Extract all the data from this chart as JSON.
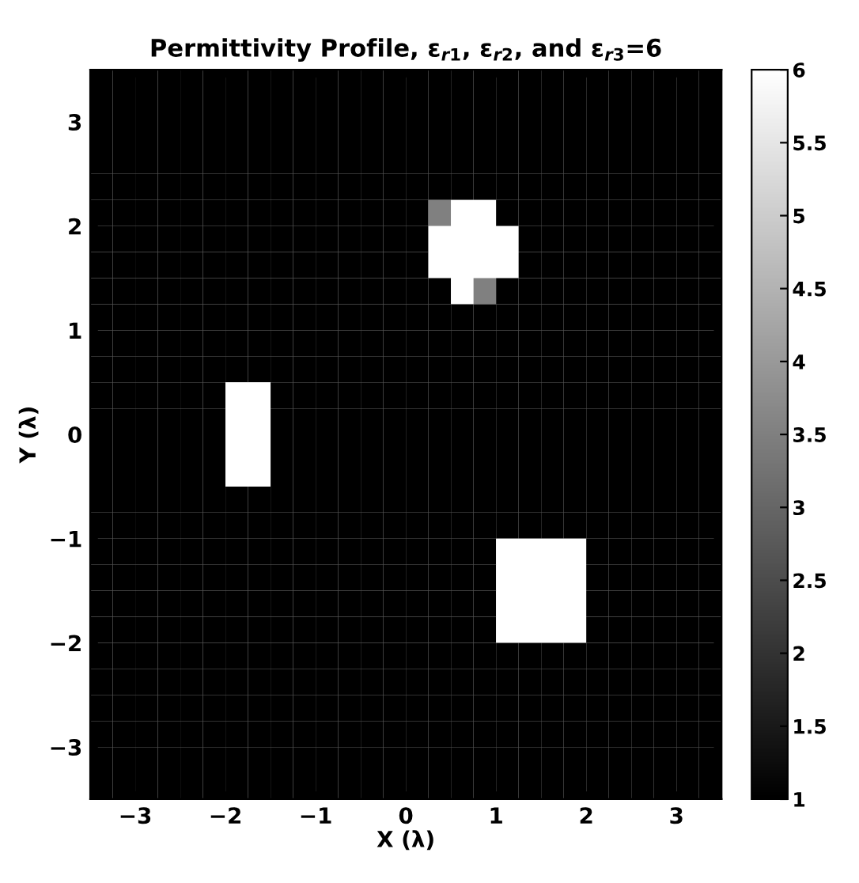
{
  "chart_data": {
    "type": "heatmap",
    "title": "Permittivity Profile, ε$_{r1}$, ε$_{r2}$, and ε$_{r3}$=6",
    "xlabel": "X (λ)",
    "ylabel": "Y (λ)",
    "xlim": [
      -3.5,
      3.5
    ],
    "ylim": [
      -3.5,
      3.5
    ],
    "xticks": [
      {
        "value": -3,
        "label": "−3"
      },
      {
        "value": -2,
        "label": "−2"
      },
      {
        "value": -1,
        "label": "−1"
      },
      0,
      1,
      2,
      3
    ],
    "yticks": [
      {
        "value": -3,
        "label": "−3"
      },
      {
        "value": -2,
        "label": "−2"
      },
      {
        "value": -1,
        "label": "−1"
      },
      0,
      1,
      2,
      3
    ],
    "clim": [
      1,
      6
    ],
    "cticks": [
      1,
      1.5,
      2,
      2.5,
      3,
      3.5,
      4,
      4.5,
      5,
      5.5,
      6
    ],
    "cells": [
      [
        1,
        1,
        1,
        1,
        1,
        1,
        1,
        1,
        1,
        1,
        1,
        1,
        1,
        1,
        1,
        1,
        1,
        1,
        1,
        1,
        1,
        1,
        1,
        1,
        1,
        1,
        1,
        1
      ],
      [
        1,
        1,
        1,
        1,
        1,
        1,
        1,
        1,
        1,
        1,
        1,
        1,
        1,
        1,
        1,
        1,
        1,
        1,
        1,
        1,
        1,
        1,
        1,
        1,
        1,
        1,
        1,
        1
      ],
      [
        1,
        1,
        1,
        1,
        1,
        1,
        1,
        1,
        1,
        1,
        1,
        1,
        1,
        1,
        1,
        1,
        1,
        1,
        1,
        1,
        1,
        1,
        1,
        1,
        1,
        1,
        1,
        1
      ],
      [
        1,
        1,
        1,
        1,
        1,
        1,
        1,
        1,
        1,
        1,
        1,
        1,
        1,
        1,
        1,
        1,
        1,
        1,
        1,
        1,
        1,
        1,
        1,
        1,
        1,
        1,
        1,
        1
      ],
      [
        1,
        1,
        1,
        1,
        1,
        1,
        1,
        1,
        1,
        1,
        1,
        1,
        1,
        1,
        1,
        1,
        1,
        1,
        1,
        1,
        1,
        1,
        1,
        1,
        1,
        1,
        1,
        1
      ],
      [
        1,
        1,
        1,
        1,
        1,
        1,
        1,
        1,
        1,
        1,
        1,
        1,
        1,
        1,
        1,
        3.5,
        6,
        6,
        1,
        1,
        1,
        1,
        1,
        1,
        1,
        1,
        1,
        1
      ],
      [
        1,
        1,
        1,
        1,
        1,
        1,
        1,
        1,
        1,
        1,
        1,
        1,
        1,
        1,
        1,
        6,
        6,
        6,
        6,
        1,
        1,
        1,
        1,
        1,
        1,
        1,
        1,
        1
      ],
      [
        1,
        1,
        1,
        1,
        1,
        1,
        1,
        1,
        1,
        1,
        1,
        1,
        1,
        1,
        1,
        6,
        6,
        6,
        6,
        1,
        1,
        1,
        1,
        1,
        1,
        1,
        1,
        1
      ],
      [
        1,
        1,
        1,
        1,
        1,
        1,
        1,
        1,
        1,
        1,
        1,
        1,
        1,
        1,
        1,
        1,
        6,
        3.5,
        1,
        1,
        1,
        1,
        1,
        1,
        1,
        1,
        1,
        1
      ],
      [
        1,
        1,
        1,
        1,
        1,
        1,
        1,
        1,
        1,
        1,
        1,
        1,
        1,
        1,
        1,
        1,
        1,
        1,
        1,
        1,
        1,
        1,
        1,
        1,
        1,
        1,
        1,
        1
      ],
      [
        1,
        1,
        1,
        1,
        1,
        1,
        1,
        1,
        1,
        1,
        1,
        1,
        1,
        1,
        1,
        1,
        1,
        1,
        1,
        1,
        1,
        1,
        1,
        1,
        1,
        1,
        1,
        1
      ],
      [
        1,
        1,
        1,
        1,
        1,
        1,
        1,
        1,
        1,
        1,
        1,
        1,
        1,
        1,
        1,
        1,
        1,
        1,
        1,
        1,
        1,
        1,
        1,
        1,
        1,
        1,
        1,
        1
      ],
      [
        1,
        1,
        1,
        1,
        1,
        1,
        6,
        6,
        1,
        1,
        1,
        1,
        1,
        1,
        1,
        1,
        1,
        1,
        1,
        1,
        1,
        1,
        1,
        1,
        1,
        1,
        1,
        1
      ],
      [
        1,
        1,
        1,
        1,
        1,
        1,
        6,
        6,
        1,
        1,
        1,
        1,
        1,
        1,
        1,
        1,
        1,
        1,
        1,
        1,
        1,
        1,
        1,
        1,
        1,
        1,
        1,
        1
      ],
      [
        1,
        1,
        1,
        1,
        1,
        1,
        6,
        6,
        1,
        1,
        1,
        1,
        1,
        1,
        1,
        1,
        1,
        1,
        1,
        1,
        1,
        1,
        1,
        1,
        1,
        1,
        1,
        1
      ],
      [
        1,
        1,
        1,
        1,
        1,
        1,
        6,
        6,
        1,
        1,
        1,
        1,
        1,
        1,
        1,
        1,
        1,
        1,
        1,
        1,
        1,
        1,
        1,
        1,
        1,
        1,
        1,
        1
      ],
      [
        1,
        1,
        1,
        1,
        1,
        1,
        1,
        1,
        1,
        1,
        1,
        1,
        1,
        1,
        1,
        1,
        1,
        1,
        1,
        1,
        1,
        1,
        1,
        1,
        1,
        1,
        1,
        1
      ],
      [
        1,
        1,
        1,
        1,
        1,
        1,
        1,
        1,
        1,
        1,
        1,
        1,
        1,
        1,
        1,
        1,
        1,
        1,
        1,
        1,
        1,
        1,
        1,
        1,
        1,
        1,
        1,
        1
      ],
      [
        1,
        1,
        1,
        1,
        1,
        1,
        1,
        1,
        1,
        1,
        1,
        1,
        1,
        1,
        1,
        1,
        1,
        1,
        6,
        6,
        6,
        6,
        1,
        1,
        1,
        1,
        1,
        1
      ],
      [
        1,
        1,
        1,
        1,
        1,
        1,
        1,
        1,
        1,
        1,
        1,
        1,
        1,
        1,
        1,
        1,
        1,
        1,
        6,
        6,
        6,
        6,
        1,
        1,
        1,
        1,
        1,
        1
      ],
      [
        1,
        1,
        1,
        1,
        1,
        1,
        1,
        1,
        1,
        1,
        1,
        1,
        1,
        1,
        1,
        1,
        1,
        1,
        6,
        6,
        6,
        6,
        1,
        1,
        1,
        1,
        1,
        1
      ],
      [
        1,
        1,
        1,
        1,
        1,
        1,
        1,
        1,
        1,
        1,
        1,
        1,
        1,
        1,
        1,
        1,
        1,
        1,
        6,
        6,
        6,
        6,
        1,
        1,
        1,
        1,
        1,
        1
      ],
      [
        1,
        1,
        1,
        1,
        1,
        1,
        1,
        1,
        1,
        1,
        1,
        1,
        1,
        1,
        1,
        1,
        1,
        1,
        1,
        1,
        1,
        1,
        1,
        1,
        1,
        1,
        1,
        1
      ],
      [
        1,
        1,
        1,
        1,
        1,
        1,
        1,
        1,
        1,
        1,
        1,
        1,
        1,
        1,
        1,
        1,
        1,
        1,
        1,
        1,
        1,
        1,
        1,
        1,
        1,
        1,
        1,
        1
      ],
      [
        1,
        1,
        1,
        1,
        1,
        1,
        1,
        1,
        1,
        1,
        1,
        1,
        1,
        1,
        1,
        1,
        1,
        1,
        1,
        1,
        1,
        1,
        1,
        1,
        1,
        1,
        1,
        1
      ],
      [
        1,
        1,
        1,
        1,
        1,
        1,
        1,
        1,
        1,
        1,
        1,
        1,
        1,
        1,
        1,
        1,
        1,
        1,
        1,
        1,
        1,
        1,
        1,
        1,
        1,
        1,
        1,
        1
      ],
      [
        1,
        1,
        1,
        1,
        1,
        1,
        1,
        1,
        1,
        1,
        1,
        1,
        1,
        1,
        1,
        1,
        1,
        1,
        1,
        1,
        1,
        1,
        1,
        1,
        1,
        1,
        1,
        1
      ],
      [
        1,
        1,
        1,
        1,
        1,
        1,
        1,
        1,
        1,
        1,
        1,
        1,
        1,
        1,
        1,
        1,
        1,
        1,
        1,
        1,
        1,
        1,
        1,
        1,
        1,
        1,
        1,
        1
      ]
    ]
  }
}
